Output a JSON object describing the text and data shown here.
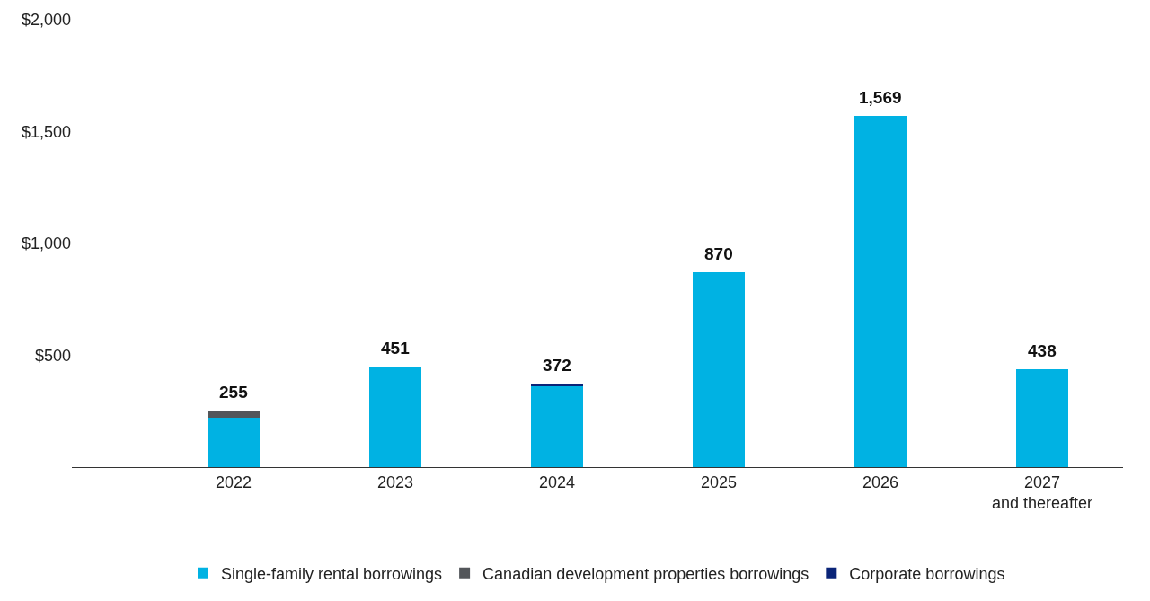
{
  "chart_data": {
    "type": "bar",
    "stacked": true,
    "categories": [
      "2022",
      "2023",
      "2024",
      "2025",
      "2026",
      "2027\nand thereafter"
    ],
    "series": [
      {
        "name": "Single-family rental borrowings",
        "color": "#00b2e3",
        "values": [
          220,
          451,
          362,
          870,
          1569,
          438
        ]
      },
      {
        "name": "Canadian development properties borrowings",
        "color": "#53565a",
        "values": [
          35,
          null,
          null,
          null,
          null,
          null
        ]
      },
      {
        "name": "Corporate borrowings",
        "color": "#0a2478",
        "values": [
          null,
          null,
          10,
          null,
          null,
          null
        ]
      }
    ],
    "totals": [
      "255",
      "451",
      "372",
      "870",
      "1,569",
      "438"
    ],
    "ylim": [
      0,
      2000
    ],
    "yticks": [
      {
        "value": 500,
        "label": "$500"
      },
      {
        "value": 1000,
        "label": "$1,000"
      },
      {
        "value": 1500,
        "label": "$1,500"
      },
      {
        "value": 2000,
        "label": "$2,000"
      }
    ],
    "legend": "bottom"
  }
}
